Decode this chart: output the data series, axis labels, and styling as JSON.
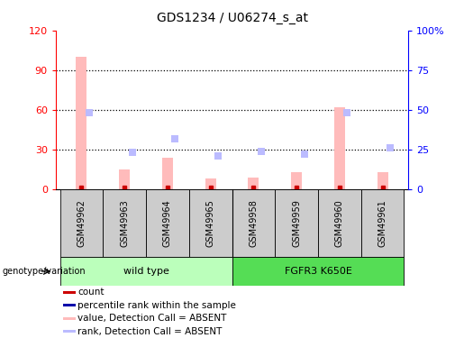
{
  "title": "GDS1234 / U06274_s_at",
  "samples": [
    "GSM49962",
    "GSM49963",
    "GSM49964",
    "GSM49965",
    "GSM49958",
    "GSM49959",
    "GSM49960",
    "GSM49961"
  ],
  "bar_values": [
    100,
    15,
    24,
    8,
    9,
    13,
    62,
    13
  ],
  "rank_values": [
    48,
    23,
    32,
    21,
    24,
    22,
    48,
    26
  ],
  "ylim_left": [
    0,
    120
  ],
  "ylim_right": [
    0,
    100
  ],
  "yticks_left": [
    0,
    30,
    60,
    90,
    120
  ],
  "ytick_labels_left": [
    "0",
    "30",
    "60",
    "90",
    "120"
  ],
  "yticks_right": [
    0,
    25,
    50,
    75,
    100
  ],
  "ytick_labels_right": [
    "0",
    "25",
    "50",
    "75",
    "100%"
  ],
  "bar_color": "#ffbbbb",
  "rank_color": "#bbbbff",
  "dot_red_color": "#cc0000",
  "dot_blue_color": "#0000aa",
  "grid_lines": [
    30,
    60,
    90
  ],
  "wt_color": "#bbffbb",
  "fgfr_color": "#55dd55",
  "legend_items": [
    {
      "color": "#cc0000",
      "label": "count"
    },
    {
      "color": "#0000aa",
      "label": "percentile rank within the sample"
    },
    {
      "color": "#ffbbbb",
      "label": "value, Detection Call = ABSENT"
    },
    {
      "color": "#bbbbff",
      "label": "rank, Detection Call = ABSENT"
    }
  ],
  "bg_color": "#ffffff",
  "plot_bg": "#ffffff",
  "spine_color": "#000000",
  "tick_gray": "#cccccc"
}
